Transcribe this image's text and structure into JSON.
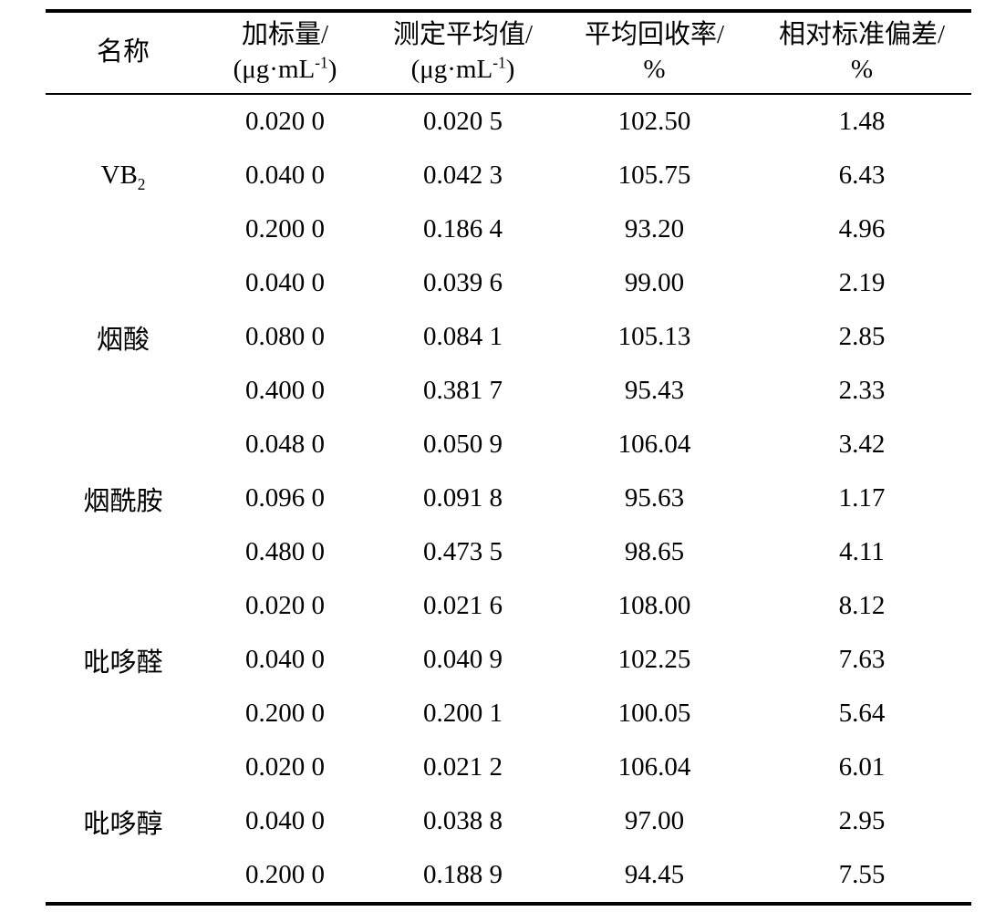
{
  "page": {
    "background": "#ffffff",
    "text_color": "#000000",
    "rule_color": "#000000"
  },
  "table": {
    "columns": [
      {
        "title": "名称"
      },
      {
        "title": "加标量/",
        "unit_pre": "(μg·mL",
        "unit_sup": "-1",
        "unit_post": ")"
      },
      {
        "title": "测定平均值/",
        "unit_pre": "(μg·mL",
        "unit_sup": "-1",
        "unit_post": ")"
      },
      {
        "title": "平均回收率/",
        "unit": "%"
      },
      {
        "title": "相对标准偏差/",
        "unit": "%"
      }
    ],
    "groups": [
      {
        "name": "VB",
        "name_sub": "2",
        "rows": [
          {
            "spiked": "0.020 0",
            "measured": "0.020 5",
            "recovery": "102.50",
            "rsd": "1.48"
          },
          {
            "spiked": "0.040 0",
            "measured": "0.042 3",
            "recovery": "105.75",
            "rsd": "6.43"
          },
          {
            "spiked": "0.200 0",
            "measured": "0.186 4",
            "recovery": "93.20",
            "rsd": "4.96"
          }
        ]
      },
      {
        "name": "烟酸",
        "name_sub": "",
        "rows": [
          {
            "spiked": "0.040 0",
            "measured": "0.039 6",
            "recovery": "99.00",
            "rsd": "2.19"
          },
          {
            "spiked": "0.080 0",
            "measured": "0.084 1",
            "recovery": "105.13",
            "rsd": "2.85"
          },
          {
            "spiked": "0.400 0",
            "measured": "0.381 7",
            "recovery": "95.43",
            "rsd": "2.33"
          }
        ]
      },
      {
        "name": "烟酰胺",
        "name_sub": "",
        "rows": [
          {
            "spiked": "0.048 0",
            "measured": "0.050 9",
            "recovery": "106.04",
            "rsd": "3.42"
          },
          {
            "spiked": "0.096 0",
            "measured": "0.091 8",
            "recovery": "95.63",
            "rsd": "1.17"
          },
          {
            "spiked": "0.480 0",
            "measured": "0.473 5",
            "recovery": "98.65",
            "rsd": "4.11"
          }
        ]
      },
      {
        "name": "吡哆醛",
        "name_sub": "",
        "rows": [
          {
            "spiked": "0.020 0",
            "measured": "0.021 6",
            "recovery": "108.00",
            "rsd": "8.12"
          },
          {
            "spiked": "0.040 0",
            "measured": "0.040 9",
            "recovery": "102.25",
            "rsd": "7.63"
          },
          {
            "spiked": "0.200 0",
            "measured": "0.200 1",
            "recovery": "100.05",
            "rsd": "5.64"
          }
        ]
      },
      {
        "name": "吡哆醇",
        "name_sub": "",
        "rows": [
          {
            "spiked": "0.020 0",
            "measured": "0.021 2",
            "recovery": "106.04",
            "rsd": "6.01"
          },
          {
            "spiked": "0.040 0",
            "measured": "0.038 8",
            "recovery": "97.00",
            "rsd": "2.95"
          },
          {
            "spiked": "0.200 0",
            "measured": "0.188 9",
            "recovery": "94.45",
            "rsd": "7.55"
          }
        ]
      }
    ]
  }
}
